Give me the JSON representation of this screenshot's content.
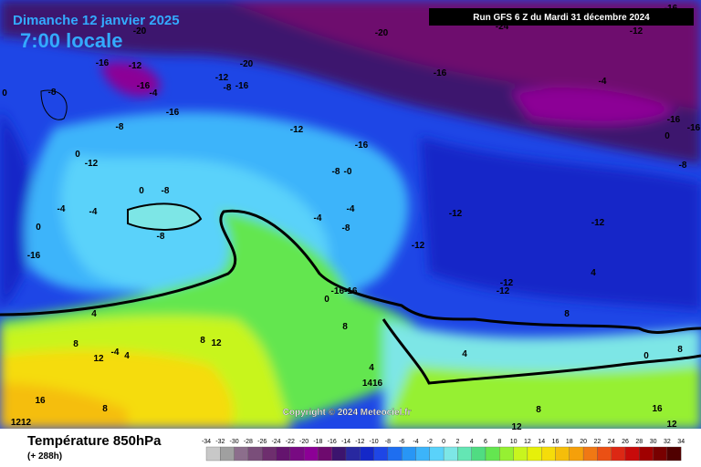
{
  "header": {
    "title": "Dimanche 12 janvier 2025",
    "subtitle": "7:00 locale",
    "run": "Run GFS 6 Z du Mardi 31 décembre 2024"
  },
  "copyright": "Copyright © 2024 Meteociel.fr",
  "legend": {
    "title": "Température 850hPa",
    "subtitle": "(+ 288h)",
    "ticks": [
      -34,
      -32,
      -30,
      -28,
      -26,
      -24,
      -22,
      -20,
      -18,
      -16,
      -14,
      -12,
      -10,
      -8,
      -6,
      -4,
      -2,
      0,
      2,
      4,
      6,
      8,
      10,
      12,
      14,
      16,
      18,
      20,
      22,
      24,
      26,
      28,
      30,
      32,
      34
    ],
    "colors": [
      "#c8c8c8",
      "#a0a0a0",
      "#8c6e8c",
      "#7a4e7a",
      "#6e2e6e",
      "#64146e",
      "#780a82",
      "#8c0096",
      "#6e0a6e",
      "#3c146e",
      "#2828a0",
      "#1428c8",
      "#1e46e6",
      "#1e6ef0",
      "#2896f5",
      "#3cb4fa",
      "#5ad2fa",
      "#7de6e6",
      "#64e6b4",
      "#50dc82",
      "#64e650",
      "#96f032",
      "#c8f51e",
      "#e6f00a",
      "#f5dc0a",
      "#f5be0a",
      "#f5a00a",
      "#f07814",
      "#eb5014",
      "#dc2814",
      "#c80a0a",
      "#a00000",
      "#780000",
      "#500000"
    ]
  },
  "map_labels": [
    "-16",
    "-20",
    "-20",
    "-24",
    "-12",
    "-16",
    "-12",
    "-20",
    "-16",
    "-4",
    "-12",
    "-8",
    "-16",
    "-16",
    "-4",
    "0",
    "-8",
    "-16",
    "-8",
    "-12",
    "-16",
    "-16",
    "-16",
    "0",
    "0",
    "-12",
    "-8",
    "-8",
    "-0",
    "0",
    "-8",
    "-4",
    "-4",
    "-4",
    "-4",
    "-8",
    "-12",
    "-12",
    "0",
    "-8",
    "-12",
    "-16",
    "4",
    "0",
    "-16-16",
    "-12",
    "-12",
    "8",
    "4",
    "8",
    "8",
    "8",
    "12",
    "-4",
    "4",
    "0",
    "8",
    "12",
    "4",
    "4",
    "1416",
    "16",
    "8",
    "8",
    "16",
    "1212",
    "12",
    "12"
  ]
}
